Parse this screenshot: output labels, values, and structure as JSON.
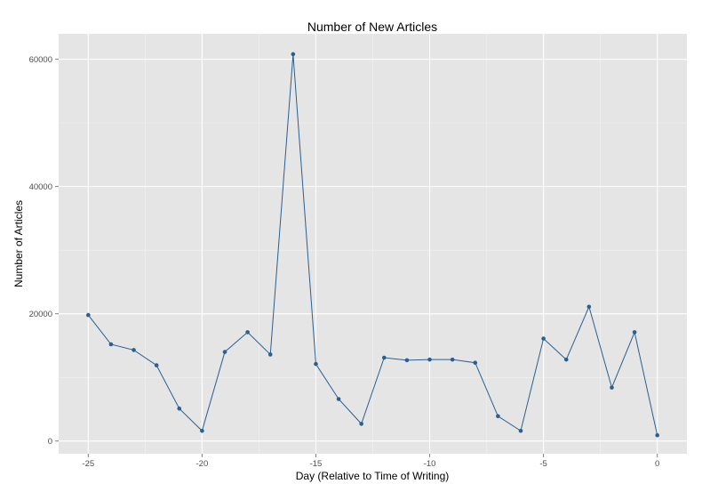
{
  "chart_data": {
    "type": "line",
    "title": "Number of New Articles",
    "xlabel": "Day (Relative to Time of Writing)",
    "ylabel": "Number of Articles",
    "xlim": [
      -26.3,
      1.3
    ],
    "ylim": [
      -2000,
      64000
    ],
    "x_ticks": [
      -25,
      -20,
      -15,
      -10,
      -5,
      0
    ],
    "x_tick_labels": [
      "-25",
      "-20",
      "-15",
      "-10",
      "-5",
      "0"
    ],
    "y_ticks": [
      0,
      20000,
      40000,
      60000
    ],
    "y_tick_labels": [
      "0",
      "20000",
      "40000",
      "60000"
    ],
    "grid": true,
    "legend": "none",
    "series": [
      {
        "color": "#2a5f8f",
        "x": [
          -25,
          -24,
          -23,
          -22,
          -21,
          -20,
          -19,
          -18,
          -17,
          -16,
          -15,
          -14,
          -13,
          -12,
          -11,
          -10,
          -9,
          -8,
          -7,
          -6,
          -5,
          -4,
          -3,
          -2,
          -1,
          0
        ],
        "y": [
          19800,
          15200,
          14300,
          11900,
          5100,
          1600,
          14000,
          17100,
          13600,
          60800,
          12100,
          6600,
          2700,
          13100,
          12700,
          12800,
          12800,
          12300,
          3900,
          1600,
          16100,
          12800,
          21100,
          8400,
          17100,
          900
        ]
      }
    ]
  }
}
